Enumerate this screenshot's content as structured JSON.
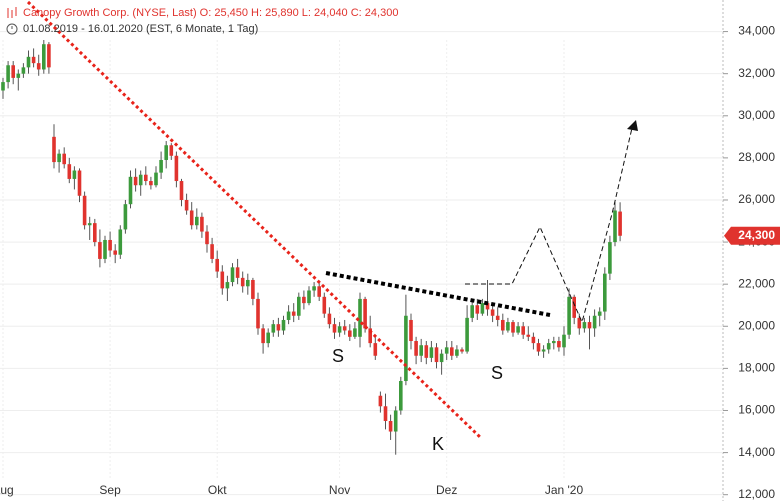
{
  "chart_data": {
    "type": "candlestick",
    "title": "Canopy Growth Corp. (NYSE, Last)  O: 25,450  H: 25,890  L: 24,040  C: 24,300",
    "subtitle": "01.08.2019 - 16.01.2020    (EST, 6 Monate, 1 Tag)",
    "up_color": "#3c9a3c",
    "down_color": "#e0332e",
    "ylim": [
      11.7,
      35.5
    ],
    "yticks": [
      {
        "value": 12,
        "label": "12,000"
      },
      {
        "value": 14,
        "label": "14,000"
      },
      {
        "value": 16,
        "label": "16,000"
      },
      {
        "value": 18,
        "label": "18,000"
      },
      {
        "value": 20,
        "label": "20,000"
      },
      {
        "value": 22,
        "label": "22,000"
      },
      {
        "value": 24,
        "label": "24,000"
      },
      {
        "value": 26,
        "label": "26,000"
      },
      {
        "value": 28,
        "label": "28,000"
      },
      {
        "value": 30,
        "label": "30,000"
      },
      {
        "value": 32,
        "label": "32,000"
      },
      {
        "value": 34,
        "label": "34,000"
      }
    ],
    "last_label": "24,300",
    "annotations": [
      "S",
      "S",
      "K"
    ],
    "categories": [
      "Aug",
      null,
      null,
      null,
      null,
      null,
      null,
      null,
      null,
      null,
      null,
      null,
      null,
      null,
      null,
      null,
      null,
      null,
      null,
      null,
      null,
      "Sep",
      null,
      null,
      null,
      null,
      null,
      null,
      null,
      null,
      null,
      null,
      null,
      null,
      null,
      null,
      null,
      null,
      null,
      null,
      null,
      null,
      "Okt",
      null,
      null,
      null,
      null,
      null,
      null,
      null,
      null,
      null,
      null,
      null,
      null,
      null,
      null,
      null,
      null,
      null,
      null,
      null,
      null,
      null,
      null,
      null,
      "Nov",
      null,
      null,
      null,
      null,
      null,
      null,
      null,
      null,
      null,
      null,
      null,
      null,
      null,
      null,
      null,
      null,
      null,
      null,
      null,
      null,
      "Dez",
      null,
      null,
      null,
      null,
      null,
      null,
      null,
      null,
      null,
      null,
      null,
      null,
      null,
      null,
      null,
      null,
      null,
      null,
      null,
      null,
      null,
      null,
      "Jan '20",
      null,
      null,
      null,
      null,
      null,
      null,
      null,
      null,
      null,
      null,
      null
    ],
    "candles": [
      [
        31.2,
        31.8,
        30.8,
        31.6
      ],
      [
        31.6,
        32.6,
        31.3,
        32.4
      ],
      [
        32.4,
        32.6,
        31.5,
        31.8
      ],
      [
        31.8,
        32.2,
        31.2,
        32.0
      ],
      [
        32.0,
        32.5,
        31.8,
        32.3
      ],
      [
        32.3,
        33.1,
        32.0,
        32.8
      ],
      [
        32.8,
        33.2,
        32.3,
        32.5
      ],
      [
        32.5,
        32.9,
        31.9,
        32.2
      ],
      [
        32.2,
        33.6,
        32.0,
        33.4
      ],
      [
        33.4,
        33.5,
        32.0,
        32.3
      ],
      [
        29.0,
        29.6,
        27.5,
        27.8
      ],
      [
        27.8,
        28.4,
        27.3,
        28.2
      ],
      [
        28.2,
        28.5,
        27.5,
        27.7
      ],
      [
        27.7,
        28.0,
        26.8,
        27.0
      ],
      [
        27.0,
        27.6,
        26.5,
        27.4
      ],
      [
        27.4,
        27.5,
        25.9,
        26.2
      ],
      [
        26.2,
        26.4,
        24.6,
        24.8
      ],
      [
        24.8,
        25.2,
        24.1,
        24.9
      ],
      [
        24.9,
        25.1,
        23.8,
        24.0
      ],
      [
        24.0,
        24.6,
        22.8,
        23.2
      ],
      [
        23.2,
        24.3,
        23.0,
        24.1
      ],
      [
        24.1,
        24.5,
        23.3,
        23.6
      ],
      [
        23.6,
        23.9,
        23.0,
        23.4
      ],
      [
        23.4,
        24.8,
        23.2,
        24.6
      ],
      [
        24.6,
        26.0,
        24.4,
        25.8
      ],
      [
        25.8,
        27.4,
        25.6,
        27.1
      ],
      [
        27.1,
        27.5,
        26.4,
        26.7
      ],
      [
        26.7,
        27.4,
        26.2,
        27.2
      ],
      [
        27.2,
        27.6,
        26.7,
        26.9
      ],
      [
        26.9,
        27.1,
        26.5,
        26.7
      ],
      [
        26.7,
        27.6,
        26.6,
        27.3
      ],
      [
        27.3,
        28.3,
        27.0,
        27.9
      ],
      [
        27.9,
        28.8,
        27.5,
        28.6
      ],
      [
        28.6,
        28.7,
        27.9,
        28.1
      ],
      [
        28.1,
        28.3,
        26.6,
        26.9
      ],
      [
        26.9,
        27.0,
        25.7,
        26.0
      ],
      [
        26.0,
        26.3,
        25.3,
        25.5
      ],
      [
        25.5,
        25.9,
        24.6,
        24.8
      ],
      [
        24.8,
        25.6,
        24.6,
        25.2
      ],
      [
        25.2,
        25.4,
        24.2,
        24.5
      ],
      [
        24.5,
        24.8,
        23.5,
        23.9
      ],
      [
        23.9,
        24.2,
        23.0,
        23.2
      ],
      [
        23.2,
        23.6,
        22.3,
        22.6
      ],
      [
        22.6,
        22.9,
        21.5,
        21.8
      ],
      [
        21.8,
        22.4,
        21.2,
        22.1
      ],
      [
        22.1,
        23.0,
        21.9,
        22.8
      ],
      [
        22.8,
        23.2,
        22.0,
        22.3
      ],
      [
        22.3,
        22.6,
        21.6,
        21.9
      ],
      [
        21.9,
        22.5,
        21.5,
        22.2
      ],
      [
        22.2,
        22.3,
        21.0,
        21.3
      ],
      [
        21.3,
        21.6,
        19.6,
        19.9
      ],
      [
        19.9,
        20.1,
        18.7,
        19.2
      ],
      [
        19.2,
        19.9,
        19.0,
        19.7
      ],
      [
        19.7,
        20.3,
        19.5,
        20.1
      ],
      [
        20.1,
        20.4,
        19.5,
        19.8
      ],
      [
        19.8,
        20.5,
        19.6,
        20.3
      ],
      [
        20.3,
        21.0,
        20.1,
        20.7
      ],
      [
        20.7,
        21.1,
        20.2,
        20.5
      ],
      [
        20.5,
        21.6,
        20.3,
        21.4
      ],
      [
        21.4,
        21.7,
        20.8,
        21.1
      ],
      [
        21.1,
        21.9,
        21.0,
        21.7
      ],
      [
        21.7,
        22.1,
        21.4,
        21.9
      ],
      [
        21.9,
        22.1,
        21.2,
        21.4
      ],
      [
        21.4,
        21.6,
        20.4,
        20.6
      ],
      [
        20.6,
        20.9,
        19.9,
        20.1
      ],
      [
        20.1,
        20.4,
        19.4,
        19.7
      ],
      [
        19.7,
        20.2,
        19.5,
        20.0
      ],
      [
        20.0,
        20.3,
        19.6,
        19.8
      ],
      [
        19.8,
        20.1,
        19.3,
        19.5
      ],
      [
        19.5,
        20.2,
        19.4,
        19.9
      ],
      [
        19.5,
        21.6,
        19.0,
        21.3
      ],
      [
        21.3,
        21.4,
        19.7,
        19.9
      ],
      [
        19.9,
        20.5,
        19.0,
        19.2
      ],
      [
        19.2,
        19.6,
        18.4,
        18.6
      ],
      [
        16.7,
        16.9,
        15.9,
        16.2
      ],
      [
        16.2,
        16.8,
        15.1,
        15.5
      ],
      [
        15.5,
        15.8,
        14.6,
        15.0
      ],
      [
        15.0,
        16.2,
        13.9,
        16.0
      ],
      [
        16.0,
        17.6,
        15.8,
        17.4
      ],
      [
        17.4,
        21.5,
        17.2,
        20.5
      ],
      [
        20.3,
        20.6,
        18.9,
        19.3
      ],
      [
        19.3,
        19.5,
        18.2,
        18.6
      ],
      [
        18.6,
        19.4,
        18.3,
        19.1
      ],
      [
        19.1,
        19.3,
        18.2,
        18.5
      ],
      [
        18.5,
        19.3,
        18.3,
        19.0
      ],
      [
        19.0,
        19.2,
        18.0,
        18.3
      ],
      [
        18.3,
        18.9,
        17.7,
        18.7
      ],
      [
        18.7,
        19.3,
        18.4,
        19.0
      ],
      [
        19.0,
        19.3,
        18.4,
        18.6
      ],
      [
        18.6,
        19.1,
        18.5,
        18.9
      ],
      [
        18.9,
        19.0,
        18.7,
        18.8
      ],
      [
        18.8,
        21.0,
        18.7,
        20.4
      ],
      [
        20.4,
        21.3,
        20.2,
        21.0
      ],
      [
        21.0,
        21.3,
        20.3,
        20.6
      ],
      [
        20.6,
        21.3,
        20.5,
        21.1
      ],
      [
        21.1,
        22.2,
        20.5,
        20.8
      ],
      [
        20.8,
        21.0,
        20.2,
        20.5
      ],
      [
        20.5,
        20.9,
        20.0,
        20.3
      ],
      [
        20.3,
        20.6,
        19.6,
        19.8
      ],
      [
        19.8,
        20.4,
        19.7,
        20.2
      ],
      [
        20.2,
        20.3,
        19.5,
        19.7
      ],
      [
        19.7,
        20.2,
        19.6,
        20.0
      ],
      [
        20.0,
        20.2,
        19.4,
        19.6
      ],
      [
        19.6,
        20.0,
        19.3,
        19.5
      ],
      [
        19.5,
        19.7,
        18.9,
        19.2
      ],
      [
        19.2,
        19.4,
        18.6,
        18.8
      ],
      [
        18.8,
        19.1,
        18.5,
        18.9
      ],
      [
        18.9,
        19.4,
        18.7,
        19.2
      ],
      [
        19.2,
        19.5,
        18.9,
        19.3
      ],
      [
        19.3,
        19.5,
        18.8,
        19.0
      ],
      [
        19.0,
        20.0,
        18.6,
        19.6
      ],
      [
        19.6,
        21.8,
        19.4,
        21.4
      ],
      [
        21.4,
        21.5,
        20.1,
        20.4
      ],
      [
        20.4,
        20.6,
        19.6,
        19.9
      ],
      [
        19.9,
        20.4,
        19.7,
        20.2
      ],
      [
        20.2,
        20.5,
        18.9,
        19.9
      ],
      [
        19.9,
        20.8,
        19.5,
        20.5
      ],
      [
        20.5,
        20.9,
        20.0,
        20.7
      ],
      [
        20.7,
        22.8,
        20.3,
        22.5
      ],
      [
        22.5,
        24.3,
        22.2,
        24.0
      ],
      [
        24.0,
        25.9,
        23.8,
        25.5
      ],
      [
        25.45,
        25.89,
        24.04,
        24.3
      ]
    ]
  }
}
